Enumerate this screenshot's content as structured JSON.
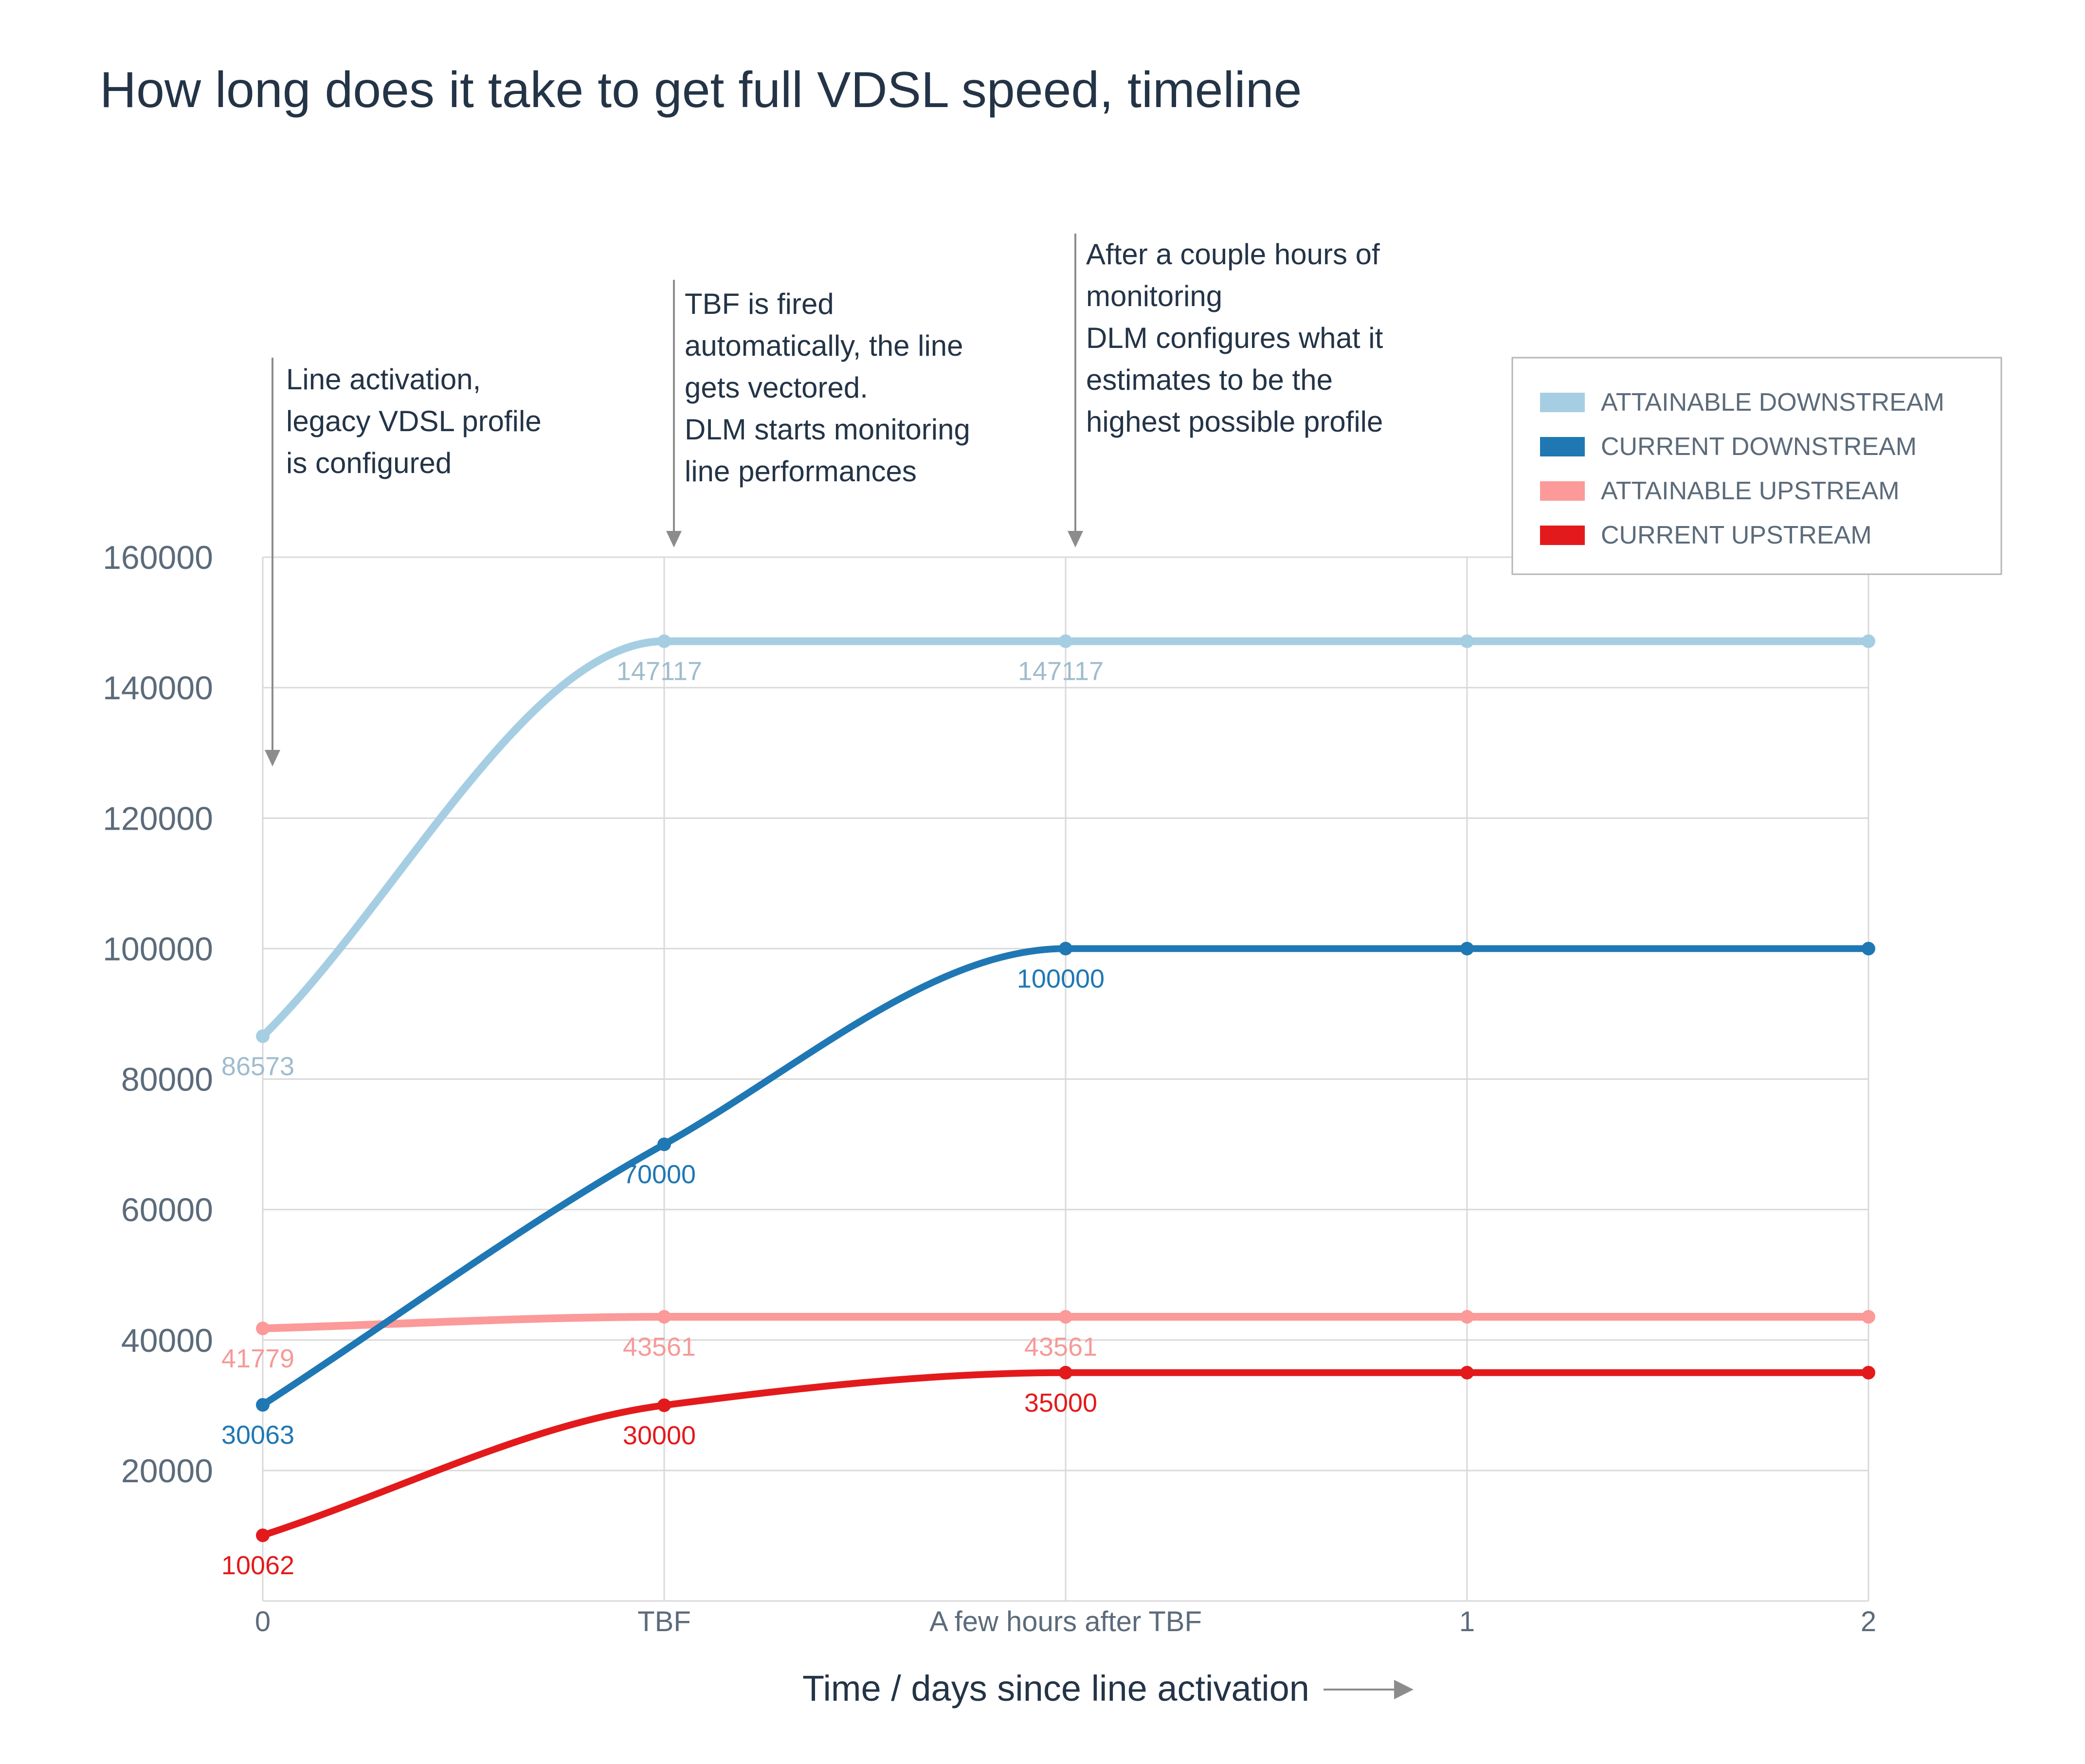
{
  "chart_data": {
    "type": "line",
    "title": "How long does it take to get full VDSL speed, timeline",
    "xlabel": "Time / days since line activation",
    "ylabel": "",
    "categories": [
      "0",
      "TBF",
      "A few hours after TBF",
      "1",
      "2"
    ],
    "ylim": [
      0,
      160000
    ],
    "yticks": [
      20000,
      40000,
      60000,
      80000,
      100000,
      120000,
      140000,
      160000
    ],
    "grid": true,
    "legend_position": "top-right",
    "series": [
      {
        "name": "ATTAINABLE DOWNSTREAM",
        "color": "#a6cee3",
        "values": [
          86573,
          147117,
          147117,
          147117,
          147117
        ],
        "labels": [
          "86573",
          "147117",
          "147117",
          "",
          ""
        ]
      },
      {
        "name": "CURRENT DOWNSTREAM",
        "color": "#1f78b4",
        "values": [
          30063,
          70000,
          100000,
          100000,
          100000
        ],
        "labels": [
          "30063",
          "70000",
          "100000",
          "",
          ""
        ]
      },
      {
        "name": "ATTAINABLE UPSTREAM",
        "color": "#fb9a99",
        "values": [
          41779,
          43561,
          43561,
          43561,
          43561
        ],
        "labels": [
          "41779",
          "43561",
          "43561",
          "",
          ""
        ]
      },
      {
        "name": "CURRENT UPSTREAM",
        "color": "#e31a1c",
        "values": [
          10062,
          30000,
          35000,
          35000,
          35000
        ],
        "labels": [
          "10062",
          "30000",
          "35000",
          "",
          ""
        ]
      }
    ],
    "annotations": [
      {
        "category": "0",
        "lines": [
          "Line activation,",
          "legacy VDSL profile",
          "is configured"
        ]
      },
      {
        "category": "TBF",
        "lines": [
          "TBF is fired",
          "automatically, the line",
          "gets vectored.",
          "DLM starts monitoring",
          "line performances"
        ]
      },
      {
        "category": "A few hours after TBF",
        "lines": [
          "After a couple hours of",
          "monitoring",
          "DLM configures what it",
          "estimates to be the",
          "highest possible profile"
        ]
      }
    ]
  }
}
